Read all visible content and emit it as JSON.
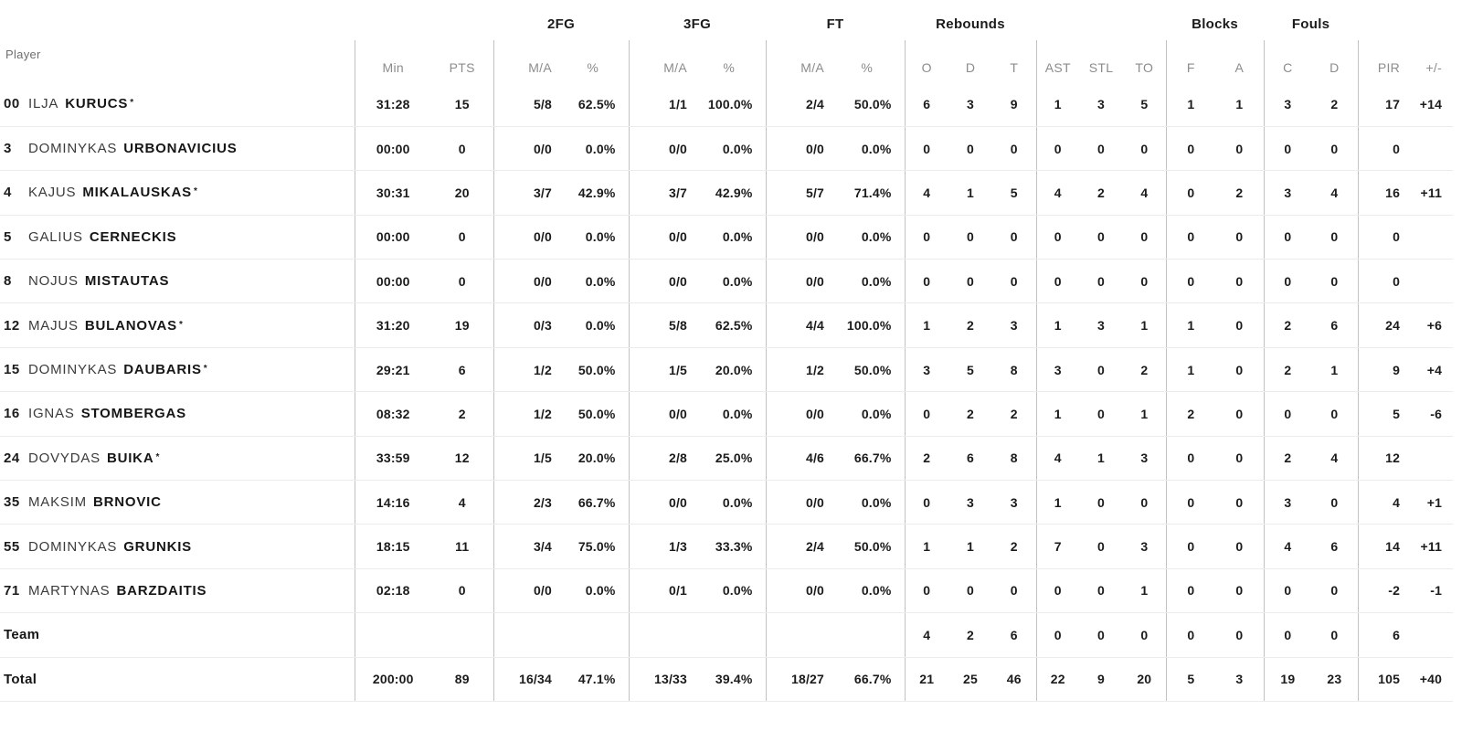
{
  "table": {
    "player_col_header": "Player",
    "starter_mark": "*",
    "groups": [
      {
        "label": "2FG"
      },
      {
        "label": "3FG"
      },
      {
        "label": "FT"
      },
      {
        "label": "Rebounds"
      },
      {
        "label": "Blocks"
      },
      {
        "label": "Fouls"
      }
    ],
    "columns": [
      "Min",
      "PTS",
      "M/A",
      "%",
      "M/A",
      "%",
      "M/A",
      "%",
      "O",
      "D",
      "T",
      "AST",
      "STL",
      "TO",
      "F",
      "A",
      "C",
      "D",
      "PIR",
      "+/-"
    ],
    "rows": [
      {
        "number": "00",
        "first": "ILJA",
        "last": "KURUCS",
        "starter": true,
        "stats": [
          "31:28",
          "15",
          "5/8",
          "62.5%",
          "1/1",
          "100.0%",
          "2/4",
          "50.0%",
          "6",
          "3",
          "9",
          "1",
          "3",
          "5",
          "1",
          "1",
          "3",
          "2",
          "17",
          "+14"
        ]
      },
      {
        "number": "3",
        "first": "DOMINYKAS",
        "last": "URBONAVICIUS",
        "starter": false,
        "stats": [
          "00:00",
          "0",
          "0/0",
          "0.0%",
          "0/0",
          "0.0%",
          "0/0",
          "0.0%",
          "0",
          "0",
          "0",
          "0",
          "0",
          "0",
          "0",
          "0",
          "0",
          "0",
          "0",
          ""
        ]
      },
      {
        "number": "4",
        "first": "KAJUS",
        "last": "MIKALAUSKAS",
        "starter": true,
        "stats": [
          "30:31",
          "20",
          "3/7",
          "42.9%",
          "3/7",
          "42.9%",
          "5/7",
          "71.4%",
          "4",
          "1",
          "5",
          "4",
          "2",
          "4",
          "0",
          "2",
          "3",
          "4",
          "16",
          "+11"
        ]
      },
      {
        "number": "5",
        "first": "GALIUS",
        "last": "CERNECKIS",
        "starter": false,
        "stats": [
          "00:00",
          "0",
          "0/0",
          "0.0%",
          "0/0",
          "0.0%",
          "0/0",
          "0.0%",
          "0",
          "0",
          "0",
          "0",
          "0",
          "0",
          "0",
          "0",
          "0",
          "0",
          "0",
          ""
        ]
      },
      {
        "number": "8",
        "first": "NOJUS",
        "last": "MISTAUTAS",
        "starter": false,
        "stats": [
          "00:00",
          "0",
          "0/0",
          "0.0%",
          "0/0",
          "0.0%",
          "0/0",
          "0.0%",
          "0",
          "0",
          "0",
          "0",
          "0",
          "0",
          "0",
          "0",
          "0",
          "0",
          "0",
          ""
        ]
      },
      {
        "number": "12",
        "first": "MAJUS",
        "last": "BULANOVAS",
        "starter": true,
        "stats": [
          "31:20",
          "19",
          "0/3",
          "0.0%",
          "5/8",
          "62.5%",
          "4/4",
          "100.0%",
          "1",
          "2",
          "3",
          "1",
          "3",
          "1",
          "1",
          "0",
          "2",
          "6",
          "24",
          "+6"
        ]
      },
      {
        "number": "15",
        "first": "DOMINYKAS",
        "last": "DAUBARIS",
        "starter": true,
        "stats": [
          "29:21",
          "6",
          "1/2",
          "50.0%",
          "1/5",
          "20.0%",
          "1/2",
          "50.0%",
          "3",
          "5",
          "8",
          "3",
          "0",
          "2",
          "1",
          "0",
          "2",
          "1",
          "9",
          "+4"
        ]
      },
      {
        "number": "16",
        "first": "IGNAS",
        "last": "STOMBERGAS",
        "starter": false,
        "stats": [
          "08:32",
          "2",
          "1/2",
          "50.0%",
          "0/0",
          "0.0%",
          "0/0",
          "0.0%",
          "0",
          "2",
          "2",
          "1",
          "0",
          "1",
          "2",
          "0",
          "0",
          "0",
          "5",
          "-6"
        ]
      },
      {
        "number": "24",
        "first": "DOVYDAS",
        "last": "BUIKA",
        "starter": true,
        "stats": [
          "33:59",
          "12",
          "1/5",
          "20.0%",
          "2/8",
          "25.0%",
          "4/6",
          "66.7%",
          "2",
          "6",
          "8",
          "4",
          "1",
          "3",
          "0",
          "0",
          "2",
          "4",
          "12",
          ""
        ]
      },
      {
        "number": "35",
        "first": "MAKSIM",
        "last": "BRNOVIC",
        "starter": false,
        "stats": [
          "14:16",
          "4",
          "2/3",
          "66.7%",
          "0/0",
          "0.0%",
          "0/0",
          "0.0%",
          "0",
          "3",
          "3",
          "1",
          "0",
          "0",
          "0",
          "0",
          "3",
          "0",
          "4",
          "+1"
        ]
      },
      {
        "number": "55",
        "first": "DOMINYKAS",
        "last": "GRUNKIS",
        "starter": false,
        "stats": [
          "18:15",
          "11",
          "3/4",
          "75.0%",
          "1/3",
          "33.3%",
          "2/4",
          "50.0%",
          "1",
          "1",
          "2",
          "7",
          "0",
          "3",
          "0",
          "0",
          "4",
          "6",
          "14",
          "+11"
        ]
      },
      {
        "number": "71",
        "first": "MARTYNAS",
        "last": "BARZDAITIS",
        "starter": false,
        "stats": [
          "02:18",
          "0",
          "0/0",
          "0.0%",
          "0/1",
          "0.0%",
          "0/0",
          "0.0%",
          "0",
          "0",
          "0",
          "0",
          "0",
          "1",
          "0",
          "0",
          "0",
          "0",
          "-2",
          "-1"
        ]
      }
    ],
    "team_row": {
      "label": "Team",
      "stats": [
        "",
        "",
        "",
        "",
        "",
        "",
        "",
        "",
        "4",
        "2",
        "6",
        "0",
        "0",
        "0",
        "0",
        "0",
        "0",
        "0",
        "6",
        ""
      ]
    },
    "total_row": {
      "label": "Total",
      "stats": [
        "200:00",
        "89",
        "16/34",
        "47.1%",
        "13/33",
        "39.4%",
        "18/27",
        "66.7%",
        "21",
        "25",
        "46",
        "22",
        "9",
        "20",
        "5",
        "3",
        "19",
        "23",
        "105",
        "+40"
      ]
    }
  },
  "colors": {
    "text_dark": "#1b1b1b",
    "header_gray": "#8c8c8c",
    "vertical_line": "#c2c2c2",
    "row_line": "#ececec",
    "background": "#ffffff"
  }
}
